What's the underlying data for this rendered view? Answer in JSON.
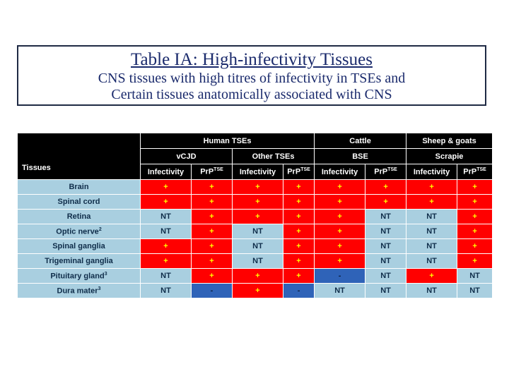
{
  "title": {
    "heading": "Table IA: High-infectivity Tissues",
    "line1": "CNS tissues with high titres of infectivity in TSEs and",
    "line2": "Certain tissues anatomically associated with CNS"
  },
  "table": {
    "corner": "Tissues",
    "groups": [
      "Human TSEs",
      "Cattle",
      "Sheep & goats"
    ],
    "subgroups": [
      "vCJD",
      "Other TSEs",
      "BSE",
      "Scrapie"
    ],
    "columns": [
      "Infectivity",
      "PrP",
      "Infectivity",
      "PrP",
      "Infectivity",
      "PrP",
      "Infectivity",
      "PrP"
    ],
    "prp_sup": "TSE",
    "rows": [
      {
        "label": "Brain",
        "sup": "",
        "cells": [
          [
            "+",
            "red"
          ],
          [
            "+",
            "red"
          ],
          [
            "+",
            "red"
          ],
          [
            "+",
            "red"
          ],
          [
            "+",
            "red"
          ],
          [
            "+",
            "red"
          ],
          [
            "+",
            "red"
          ],
          [
            "+",
            "red"
          ]
        ]
      },
      {
        "label": "Spinal cord",
        "sup": "",
        "cells": [
          [
            "+",
            "red"
          ],
          [
            "+",
            "red"
          ],
          [
            "+",
            "red"
          ],
          [
            "+",
            "red"
          ],
          [
            "+",
            "red"
          ],
          [
            "+",
            "red"
          ],
          [
            "+",
            "red"
          ],
          [
            "+",
            "red"
          ]
        ]
      },
      {
        "label": "Retina",
        "sup": "",
        "cells": [
          [
            "NT",
            "lb"
          ],
          [
            "+",
            "red"
          ],
          [
            "+",
            "red"
          ],
          [
            "+",
            "red"
          ],
          [
            "+",
            "red"
          ],
          [
            "NT",
            "lb"
          ],
          [
            "NT",
            "lb"
          ],
          [
            "+",
            "red"
          ]
        ]
      },
      {
        "label": "Optic nerve",
        "sup": "2",
        "cells": [
          [
            "NT",
            "lb"
          ],
          [
            "+",
            "red"
          ],
          [
            "NT",
            "lb"
          ],
          [
            "+",
            "red"
          ],
          [
            "+",
            "red"
          ],
          [
            "NT",
            "lb"
          ],
          [
            "NT",
            "lb"
          ],
          [
            "+",
            "red"
          ]
        ]
      },
      {
        "label": "Spinal ganglia",
        "sup": "",
        "cells": [
          [
            "+",
            "red"
          ],
          [
            "+",
            "red"
          ],
          [
            "NT",
            "lb"
          ],
          [
            "+",
            "red"
          ],
          [
            "+",
            "red"
          ],
          [
            "NT",
            "lb"
          ],
          [
            "NT",
            "lb"
          ],
          [
            "+",
            "red"
          ]
        ]
      },
      {
        "label": "Trigeminal ganglia",
        "sup": "",
        "cells": [
          [
            "+",
            "red"
          ],
          [
            "+",
            "red"
          ],
          [
            "NT",
            "lb"
          ],
          [
            "+",
            "red"
          ],
          [
            "+",
            "red"
          ],
          [
            "NT",
            "lb"
          ],
          [
            "NT",
            "lb"
          ],
          [
            "+",
            "red"
          ]
        ]
      },
      {
        "label": "Pituitary gland",
        "sup": "3",
        "cells": [
          [
            "NT",
            "lb"
          ],
          [
            "+",
            "red"
          ],
          [
            "+",
            "red"
          ],
          [
            "+",
            "red"
          ],
          [
            "-",
            "db"
          ],
          [
            "NT",
            "lb"
          ],
          [
            "+",
            "red"
          ],
          [
            "NT",
            "lb"
          ]
        ]
      },
      {
        "label": "Dura mater",
        "sup": "3",
        "cells": [
          [
            "NT",
            "lb"
          ],
          [
            "-",
            "db"
          ],
          [
            "+",
            "red"
          ],
          [
            "-",
            "db"
          ],
          [
            "NT",
            "lb"
          ],
          [
            "NT",
            "lb"
          ],
          [
            "NT",
            "lb"
          ],
          [
            "NT",
            "lb"
          ]
        ]
      }
    ]
  },
  "colors": {
    "positive": "#ff0000",
    "not_tested": "#a9cfe0",
    "negative": "#2f63b8",
    "header": "#000000",
    "title_text": "#1a2a6c"
  }
}
